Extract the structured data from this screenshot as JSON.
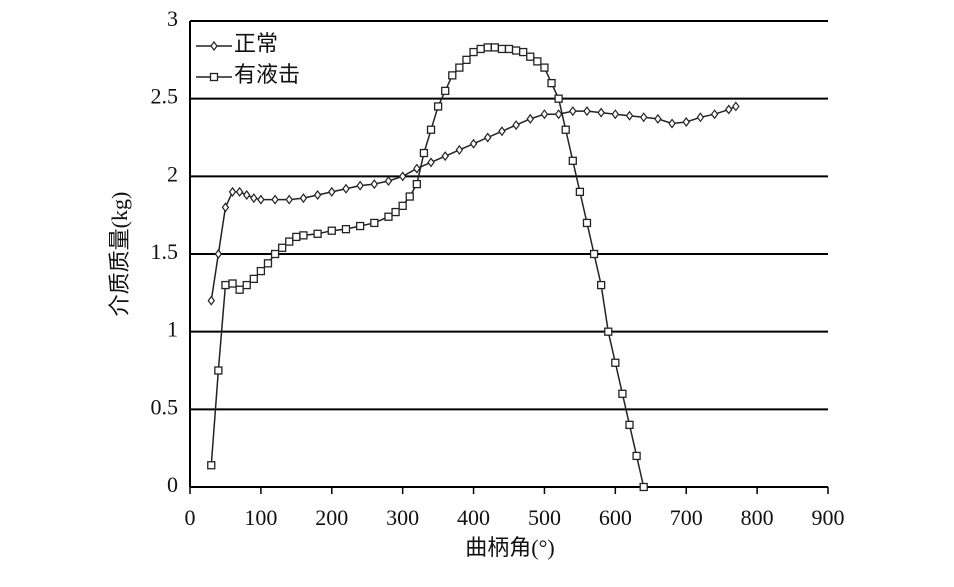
{
  "chart_data": {
    "type": "line",
    "x_label": "曲柄角(°)",
    "y_label": "介质质量(kg)",
    "xlim": [
      0,
      900
    ],
    "xticks": [
      0,
      100,
      200,
      300,
      400,
      500,
      600,
      700,
      800,
      900
    ],
    "ylim": [
      0,
      3
    ],
    "yticks": [
      0,
      0.5,
      1,
      1.5,
      2,
      2.5,
      3
    ],
    "grid": true,
    "legend": "upper left",
    "series": [
      {
        "name": "正常",
        "color": "#222222",
        "marker": "diamond",
        "x": [
          30,
          40,
          50,
          60,
          70,
          80,
          90,
          100,
          120,
          140,
          160,
          180,
          200,
          220,
          240,
          260,
          280,
          300,
          320,
          340,
          360,
          380,
          400,
          420,
          440,
          460,
          480,
          500,
          520,
          540,
          560,
          580,
          600,
          620,
          640,
          660,
          680,
          700,
          720,
          740,
          760,
          770
        ],
        "values": [
          1.2,
          1.5,
          1.8,
          1.9,
          1.9,
          1.88,
          1.86,
          1.85,
          1.85,
          1.85,
          1.86,
          1.88,
          1.9,
          1.92,
          1.94,
          1.95,
          1.97,
          2.0,
          2.05,
          2.09,
          2.13,
          2.17,
          2.21,
          2.25,
          2.29,
          2.33,
          2.37,
          2.4,
          2.4,
          2.42,
          2.42,
          2.41,
          2.4,
          2.39,
          2.38,
          2.37,
          2.34,
          2.35,
          2.38,
          2.4,
          2.43,
          2.45
        ]
      },
      {
        "name": "有液击",
        "color": "#222222",
        "marker": "square",
        "x": [
          30,
          40,
          50,
          60,
          70,
          80,
          90,
          100,
          110,
          120,
          130,
          140,
          150,
          160,
          180,
          200,
          220,
          240,
          260,
          280,
          290,
          300,
          310,
          320,
          330,
          340,
          350,
          360,
          370,
          380,
          390,
          400,
          410,
          420,
          430,
          440,
          450,
          460,
          470,
          480,
          490,
          500,
          510,
          520,
          530,
          540,
          550,
          560,
          570,
          580,
          590,
          600,
          610,
          620,
          630,
          640
        ],
        "values": [
          0.14,
          0.75,
          1.3,
          1.31,
          1.27,
          1.3,
          1.34,
          1.39,
          1.44,
          1.5,
          1.54,
          1.58,
          1.61,
          1.62,
          1.63,
          1.65,
          1.66,
          1.68,
          1.7,
          1.74,
          1.77,
          1.81,
          1.87,
          1.95,
          2.15,
          2.3,
          2.45,
          2.55,
          2.65,
          2.7,
          2.75,
          2.8,
          2.82,
          2.83,
          2.83,
          2.82,
          2.82,
          2.81,
          2.8,
          2.77,
          2.74,
          2.7,
          2.6,
          2.5,
          2.3,
          2.1,
          1.9,
          1.7,
          1.5,
          1.3,
          1.0,
          0.8,
          0.6,
          0.4,
          0.2,
          0.0
        ]
      }
    ]
  }
}
